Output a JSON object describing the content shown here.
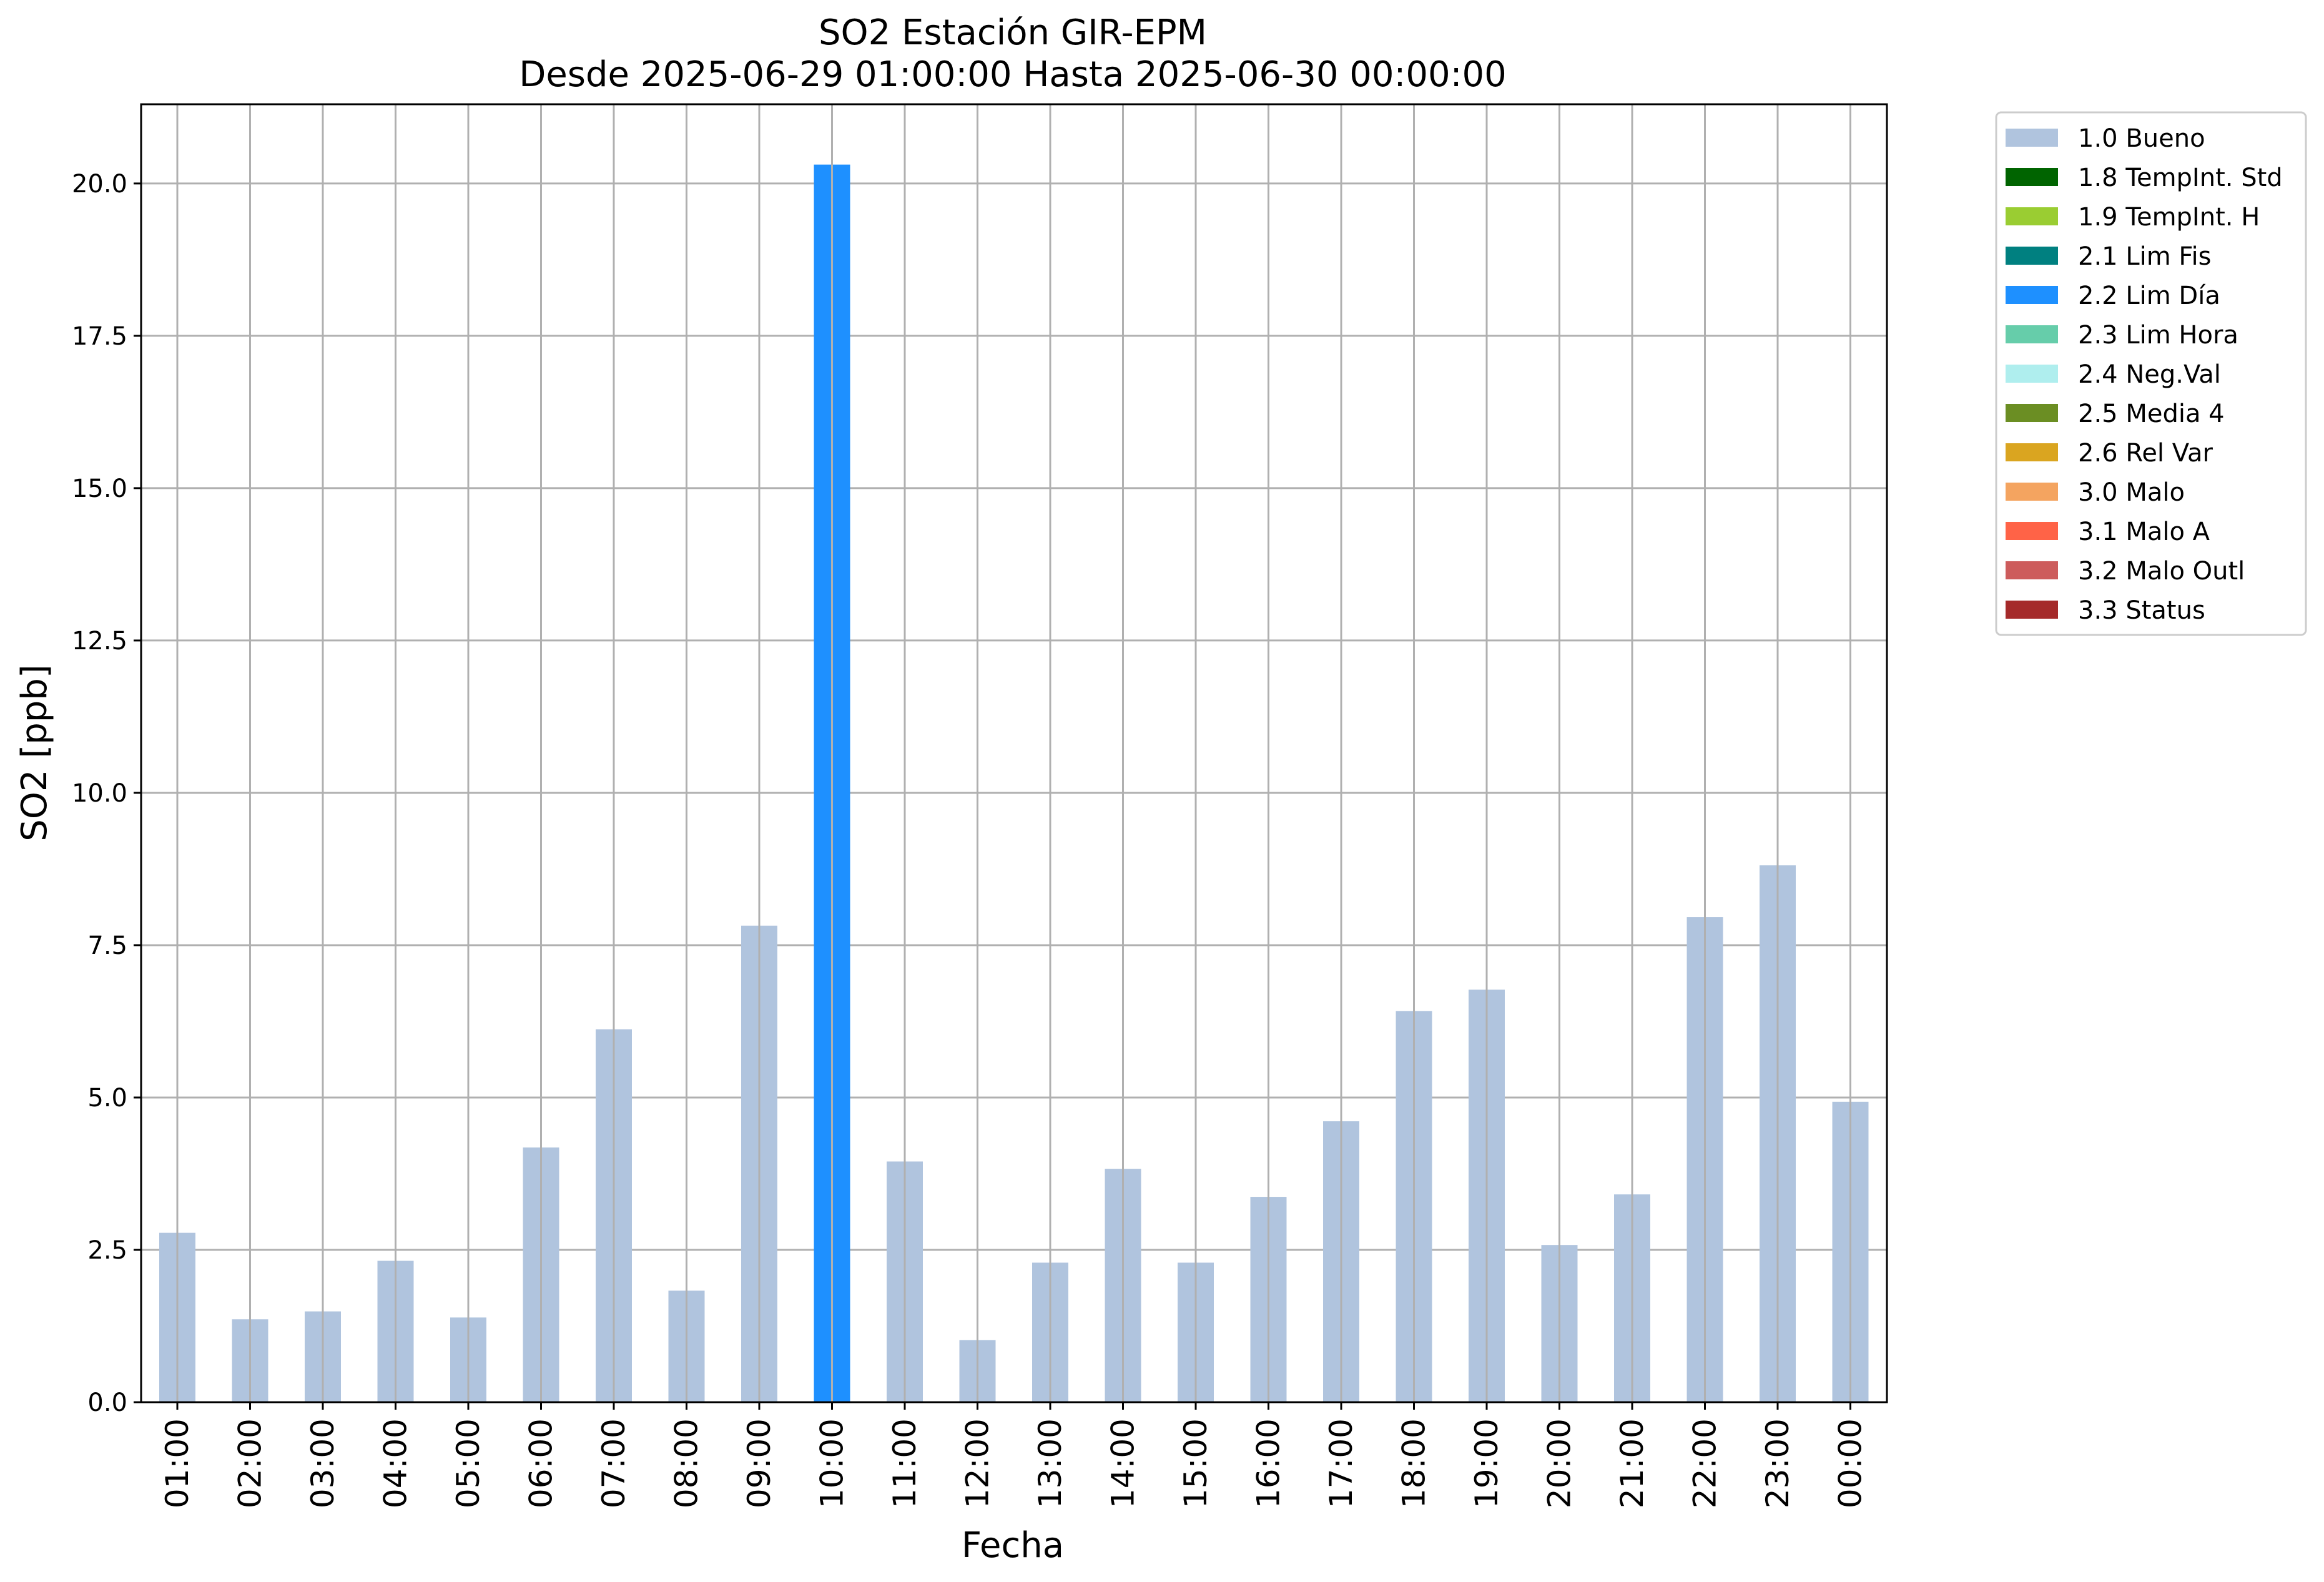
{
  "chart_data": {
    "type": "bar",
    "title": "SO2 Estación GIR-EPM",
    "subtitle": "Desde 2025-06-29 01:00:00 Hasta 2025-06-30 00:00:00",
    "xlabel": "Fecha",
    "ylabel": "SO2 [ppb]",
    "ylim": [
      0,
      21.3
    ],
    "yticks": [
      "0.0",
      "2.5",
      "5.0",
      "7.5",
      "10.0",
      "12.5",
      "15.0",
      "17.5",
      "20.0"
    ],
    "ytick_values": [
      0,
      2.5,
      5,
      7.5,
      10,
      12.5,
      15,
      17.5,
      20
    ],
    "grid": true,
    "legend_position": "outside-top-right",
    "categories": [
      "01:00",
      "02:00",
      "03:00",
      "04:00",
      "05:00",
      "06:00",
      "07:00",
      "08:00",
      "09:00",
      "10:00",
      "11:00",
      "12:00",
      "13:00",
      "14:00",
      "15:00",
      "16:00",
      "17:00",
      "18:00",
      "19:00",
      "20:00",
      "21:00",
      "22:00",
      "23:00",
      "00:00"
    ],
    "values": [
      2.78,
      1.36,
      1.49,
      2.32,
      1.39,
      4.18,
      6.12,
      1.83,
      7.82,
      20.31,
      3.95,
      1.02,
      2.29,
      3.83,
      2.29,
      3.37,
      4.61,
      6.42,
      6.77,
      2.58,
      3.41,
      7.96,
      8.81,
      4.93
    ],
    "flags": [
      "1.0 Bueno",
      "1.0 Bueno",
      "1.0 Bueno",
      "1.0 Bueno",
      "1.0 Bueno",
      "1.0 Bueno",
      "1.0 Bueno",
      "1.0 Bueno",
      "1.0 Bueno",
      "2.2 Lim Día",
      "1.0 Bueno",
      "1.0 Bueno",
      "1.0 Bueno",
      "1.0 Bueno",
      "1.0 Bueno",
      "1.0 Bueno",
      "1.0 Bueno",
      "1.0 Bueno",
      "1.0 Bueno",
      "1.0 Bueno",
      "1.0 Bueno",
      "1.0 Bueno",
      "1.0 Bueno",
      "1.0 Bueno"
    ],
    "legend": [
      {
        "name": "1.0 Bueno",
        "color": "#b0c4de"
      },
      {
        "name": "1.8 TempInt. Std",
        "color": "#006400"
      },
      {
        "name": "1.9 TempInt. H",
        "color": "#9acd32"
      },
      {
        "name": "2.1 Lim Fis",
        "color": "#008080"
      },
      {
        "name": "2.2 Lim Día",
        "color": "#1e90ff"
      },
      {
        "name": "2.3 Lim Hora",
        "color": "#66cdaa"
      },
      {
        "name": "2.4 Neg.Val",
        "color": "#afeeee"
      },
      {
        "name": "2.5 Media 4",
        "color": "#6b8e23"
      },
      {
        "name": "2.6 Rel Var",
        "color": "#daa520"
      },
      {
        "name": "3.0 Malo",
        "color": "#f4a460"
      },
      {
        "name": "3.1 Malo A",
        "color": "#ff6347"
      },
      {
        "name": "3.2 Malo Outl",
        "color": "#cd5c5c"
      },
      {
        "name": "3.3 Status",
        "color": "#a52a2a"
      }
    ],
    "grid_color": "#b0b0b0"
  }
}
